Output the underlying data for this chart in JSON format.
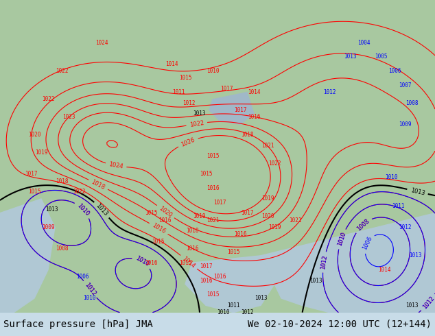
{
  "title_left": "Surface pressure [hPa] JMA",
  "title_right": "We 02-10-2024 12:00 UTC (12+144)",
  "title_fontsize": 10,
  "title_color": "#000000",
  "land_color": "#a8c8a0",
  "ocean_color": "#b0c8d4",
  "fig_bg": "#c8dce8",
  "bottom_bar_color": "#d0d0d0",
  "label_data": [
    [
      148,
      60,
      "1024",
      "red"
    ],
    [
      90,
      100,
      "1022",
      "red"
    ],
    [
      70,
      140,
      "1022",
      "red"
    ],
    [
      100,
      165,
      "1023",
      "red"
    ],
    [
      50,
      190,
      "1020",
      "red"
    ],
    [
      60,
      215,
      "1019",
      "red"
    ],
    [
      45,
      245,
      "1017",
      "red"
    ],
    [
      50,
      270,
      "1015",
      "red"
    ],
    [
      90,
      255,
      "1018",
      "red"
    ],
    [
      115,
      270,
      "1022",
      "red"
    ],
    [
      75,
      295,
      "1013",
      "black"
    ],
    [
      70,
      320,
      "1009",
      "red"
    ],
    [
      90,
      350,
      "1008",
      "red"
    ],
    [
      120,
      390,
      "1006",
      "blue"
    ],
    [
      130,
      420,
      "1010",
      "blue"
    ],
    [
      250,
      90,
      "1014",
      "red"
    ],
    [
      270,
      110,
      "1015",
      "red"
    ],
    [
      260,
      130,
      "1011",
      "red"
    ],
    [
      275,
      145,
      "1012",
      "red"
    ],
    [
      310,
      100,
      "1010",
      "red"
    ],
    [
      330,
      125,
      "1017",
      "red"
    ],
    [
      290,
      160,
      "1013",
      "black"
    ],
    [
      370,
      130,
      "1014",
      "red"
    ],
    [
      370,
      165,
      "1016",
      "red"
    ],
    [
      360,
      190,
      "1018",
      "red"
    ],
    [
      350,
      155,
      "1017",
      "red"
    ],
    [
      390,
      205,
      "1021",
      "red"
    ],
    [
      400,
      230,
      "1022",
      "red"
    ],
    [
      310,
      220,
      "1015",
      "red"
    ],
    [
      300,
      245,
      "1015",
      "red"
    ],
    [
      310,
      265,
      "1016",
      "red"
    ],
    [
      320,
      285,
      "1017",
      "red"
    ],
    [
      310,
      310,
      "1021",
      "red"
    ],
    [
      290,
      305,
      "1019",
      "red"
    ],
    [
      280,
      325,
      "1018",
      "red"
    ],
    [
      280,
      350,
      "1016",
      "red"
    ],
    [
      270,
      370,
      "1015",
      "red"
    ],
    [
      300,
      375,
      "1017",
      "red"
    ],
    [
      300,
      395,
      "1016",
      "red"
    ],
    [
      310,
      415,
      "1015",
      "red"
    ],
    [
      320,
      390,
      "1016",
      "red"
    ],
    [
      340,
      355,
      "1015",
      "red"
    ],
    [
      350,
      330,
      "1016",
      "red"
    ],
    [
      360,
      300,
      "1017",
      "red"
    ],
    [
      390,
      280,
      "1019",
      "red"
    ],
    [
      390,
      305,
      "1020",
      "red"
    ],
    [
      400,
      320,
      "1019",
      "red"
    ],
    [
      220,
      370,
      "1016",
      "red"
    ],
    [
      230,
      340,
      "1015",
      "red"
    ],
    [
      240,
      310,
      "1016",
      "red"
    ],
    [
      220,
      300,
      "1015",
      "red"
    ],
    [
      430,
      310,
      "1021",
      "red"
    ],
    [
      480,
      130,
      "1012",
      "blue"
    ],
    [
      510,
      80,
      "1013",
      "blue"
    ],
    [
      530,
      60,
      "1004",
      "blue"
    ],
    [
      555,
      80,
      "1005",
      "blue"
    ],
    [
      575,
      100,
      "1006",
      "blue"
    ],
    [
      590,
      120,
      "1007",
      "blue"
    ],
    [
      600,
      145,
      "1008",
      "blue"
    ],
    [
      590,
      175,
      "1009",
      "blue"
    ],
    [
      570,
      250,
      "1010",
      "blue"
    ],
    [
      580,
      290,
      "1011",
      "blue"
    ],
    [
      590,
      320,
      "1012",
      "blue"
    ],
    [
      605,
      360,
      "1013",
      "blue"
    ],
    [
      560,
      380,
      "1014",
      "red"
    ],
    [
      600,
      430,
      "1013",
      "black"
    ],
    [
      460,
      395,
      "1013",
      "black"
    ],
    [
      380,
      420,
      "1013",
      "black"
    ],
    [
      360,
      440,
      "1012",
      "black"
    ],
    [
      340,
      430,
      "1011",
      "black"
    ],
    [
      325,
      440,
      "1010",
      "black"
    ]
  ]
}
